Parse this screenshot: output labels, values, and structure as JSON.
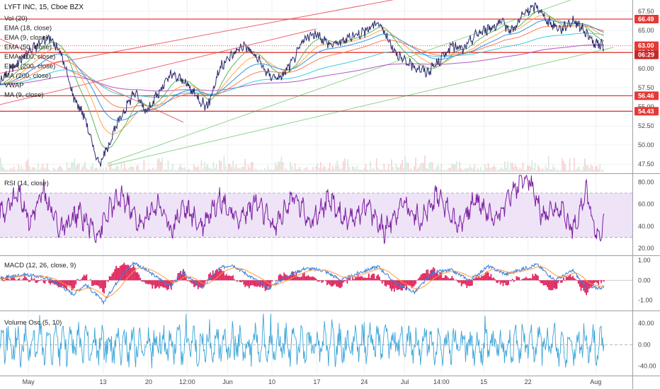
{
  "chart_data": {
    "type": "line",
    "title": "LYFT INC, 15, Cboe BZX",
    "price_pane": {
      "indicator_labels": [
        "Vol (20)",
        "EMA (18, close)",
        "EMA (9, close)",
        "EMA (50, close)",
        "EMA (100, close)",
        "EMA (200, close)",
        "MA (200, close)",
        "VWAP",
        "MA (9, close)"
      ],
      "y_ticks": [
        47.5,
        50.0,
        52.5,
        55.0,
        57.5,
        60.0,
        62.5,
        65.0,
        67.5
      ],
      "ylim": [
        46.5,
        68.8
      ],
      "horizontal_levels": [
        {
          "value": 66.49,
          "label": "66.49",
          "color": "#e53935"
        },
        {
          "value": 62.12,
          "label": "62.12",
          "color": "#e53935"
        },
        {
          "value": 56.46,
          "label": "56.46",
          "color": "#e53935"
        },
        {
          "value": 54.43,
          "label": "54.43",
          "color": "#e53935"
        }
      ],
      "last_price": {
        "value": 63.0,
        "label": "63.00",
        "countdown": "06:29"
      },
      "trendlines": [
        {
          "name": "upper-channel",
          "color": "#f06272",
          "from": [
            0.0,
            59.4
          ],
          "to": [
            0.75,
            71.0
          ]
        },
        {
          "name": "lower-channel",
          "color": "#f06272",
          "from": [
            0.0,
            55.3
          ],
          "to": [
            0.5,
            65.2
          ]
        },
        {
          "name": "descending",
          "color": "#f06272",
          "from": [
            0.0,
            63.9
          ],
          "to": [
            0.29,
            53.0
          ]
        },
        {
          "name": "green-upper",
          "color": "#8bd58b",
          "from": [
            0.17,
            47.6
          ],
          "to": [
            0.92,
            69.5
          ]
        },
        {
          "name": "green-lower",
          "color": "#8bd58b",
          "from": [
            0.17,
            47.3
          ],
          "to": [
            0.97,
            62.8
          ]
        }
      ],
      "price_anchors": [
        [
          0.0,
          58.2
        ],
        [
          0.02,
          60.2
        ],
        [
          0.05,
          62.4
        ],
        [
          0.08,
          64.2
        ],
        [
          0.1,
          62.0
        ],
        [
          0.12,
          56.5
        ],
        [
          0.14,
          53.5
        ],
        [
          0.155,
          49.0
        ],
        [
          0.165,
          47.6
        ],
        [
          0.18,
          50.5
        ],
        [
          0.2,
          54.0
        ],
        [
          0.22,
          57.0
        ],
        [
          0.24,
          54.5
        ],
        [
          0.26,
          56.8
        ],
        [
          0.28,
          59.2
        ],
        [
          0.3,
          58.5
        ],
        [
          0.32,
          56.6
        ],
        [
          0.34,
          55.0
        ],
        [
          0.36,
          60.0
        ],
        [
          0.38,
          61.8
        ],
        [
          0.4,
          63.2
        ],
        [
          0.42,
          61.5
        ],
        [
          0.44,
          59.2
        ],
        [
          0.46,
          58.8
        ],
        [
          0.48,
          61.0
        ],
        [
          0.5,
          64.0
        ],
        [
          0.52,
          64.5
        ],
        [
          0.54,
          63.2
        ],
        [
          0.56,
          63.5
        ],
        [
          0.58,
          64.4
        ],
        [
          0.6,
          65.0
        ],
        [
          0.62,
          66.2
        ],
        [
          0.64,
          63.3
        ],
        [
          0.66,
          61.0
        ],
        [
          0.68,
          60.3
        ],
        [
          0.7,
          59.5
        ],
        [
          0.72,
          61.0
        ],
        [
          0.74,
          63.0
        ],
        [
          0.76,
          62.5
        ],
        [
          0.78,
          64.5
        ],
        [
          0.8,
          65.2
        ],
        [
          0.82,
          66.0
        ],
        [
          0.84,
          65.0
        ],
        [
          0.86,
          67.3
        ],
        [
          0.88,
          68.2
        ],
        [
          0.9,
          66.0
        ],
        [
          0.92,
          65.2
        ],
        [
          0.94,
          66.4
        ],
        [
          0.96,
          64.8
        ],
        [
          0.975,
          63.2
        ],
        [
          0.99,
          63.0
        ]
      ]
    },
    "rsi_pane": {
      "label": "RSI (14, close)",
      "y_ticks": [
        20.0,
        40.0,
        60.0,
        80.0
      ],
      "ylim": [
        15,
        86
      ],
      "band": [
        30,
        70
      ],
      "anchors": [
        [
          0.0,
          50
        ],
        [
          0.03,
          70
        ],
        [
          0.05,
          45
        ],
        [
          0.07,
          72
        ],
        [
          0.1,
          35
        ],
        [
          0.13,
          52
        ],
        [
          0.16,
          32
        ],
        [
          0.18,
          55
        ],
        [
          0.2,
          68
        ],
        [
          0.23,
          40
        ],
        [
          0.26,
          62
        ],
        [
          0.28,
          36
        ],
        [
          0.3,
          58
        ],
        [
          0.33,
          40
        ],
        [
          0.36,
          66
        ],
        [
          0.39,
          45
        ],
        [
          0.42,
          62
        ],
        [
          0.45,
          38
        ],
        [
          0.48,
          68
        ],
        [
          0.51,
          44
        ],
        [
          0.54,
          64
        ],
        [
          0.57,
          42
        ],
        [
          0.6,
          60
        ],
        [
          0.63,
          35
        ],
        [
          0.66,
          62
        ],
        [
          0.69,
          45
        ],
        [
          0.72,
          70
        ],
        [
          0.75,
          40
        ],
        [
          0.78,
          64
        ],
        [
          0.81,
          46
        ],
        [
          0.84,
          72
        ],
        [
          0.865,
          86
        ],
        [
          0.89,
          48
        ],
        [
          0.92,
          54
        ],
        [
          0.94,
          36
        ],
        [
          0.96,
          72
        ],
        [
          0.98,
          28
        ],
        [
          0.99,
          43
        ]
      ]
    },
    "macd_pane": {
      "label": "MACD (12, 26, close, 9)",
      "y_ticks": [
        -1.0,
        0.0,
        1.0
      ],
      "ylim": [
        -1.45,
        1.15
      ],
      "anchors": [
        [
          0.0,
          0.1
        ],
        [
          0.04,
          0.3
        ],
        [
          0.08,
          0.1
        ],
        [
          0.12,
          -0.7
        ],
        [
          0.14,
          -0.2
        ],
        [
          0.17,
          -1.1
        ],
        [
          0.2,
          0.3
        ],
        [
          0.22,
          0.9
        ],
        [
          0.25,
          0.3
        ],
        [
          0.28,
          -0.3
        ],
        [
          0.3,
          0.4
        ],
        [
          0.33,
          -0.4
        ],
        [
          0.36,
          0.6
        ],
        [
          0.38,
          0.8
        ],
        [
          0.41,
          0.2
        ],
        [
          0.44,
          -0.4
        ],
        [
          0.47,
          0.2
        ],
        [
          0.5,
          0.6
        ],
        [
          0.53,
          0.5
        ],
        [
          0.56,
          0.0
        ],
        [
          0.59,
          0.4
        ],
        [
          0.62,
          0.7
        ],
        [
          0.65,
          -0.2
        ],
        [
          0.68,
          -0.6
        ],
        [
          0.71,
          0.4
        ],
        [
          0.74,
          0.5
        ],
        [
          0.77,
          0.0
        ],
        [
          0.8,
          0.7
        ],
        [
          0.83,
          0.3
        ],
        [
          0.86,
          0.6
        ],
        [
          0.88,
          0.8
        ],
        [
          0.91,
          0.0
        ],
        [
          0.94,
          0.5
        ],
        [
          0.96,
          -0.4
        ],
        [
          0.99,
          -0.35
        ]
      ],
      "macd_color": "#3d7bd4",
      "signal_color": "#ff9a3a",
      "hist_color": "#e0245e"
    },
    "vol_osc_pane": {
      "label": "Volume Osc (5, 10)",
      "y_ticks": [
        -40.0,
        0.0,
        40.0
      ],
      "ylim": [
        -55,
        60
      ],
      "color": "#3aa5d8"
    },
    "x_ticks": [
      {
        "label": "May",
        "pos": 0.045
      },
      {
        "label": "13",
        "pos": 0.163
      },
      {
        "label": "20",
        "pos": 0.235
      },
      {
        "label": "12:00",
        "pos": 0.296
      },
      {
        "label": "Jun",
        "pos": 0.36
      },
      {
        "label": "10",
        "pos": 0.43
      },
      {
        "label": "17",
        "pos": 0.501
      },
      {
        "label": "24",
        "pos": 0.576
      },
      {
        "label": "Jul",
        "pos": 0.64
      },
      {
        "label": "14:00",
        "pos": 0.698
      },
      {
        "label": "15",
        "pos": 0.765
      },
      {
        "label": "22",
        "pos": 0.835
      },
      {
        "label": "Aug",
        "pos": 0.942
      }
    ],
    "colors": {
      "price": "#2c2c6c",
      "ema18": "#ff9e3d",
      "ema9": "#4caf50",
      "ema50": "#ff6f3d",
      "ema100": "#26c6da",
      "ema200": "#ab47bc",
      "ma9": "#1e88e5",
      "rsi": "#7b1fa2",
      "rsi_band": "#efe3f7",
      "volume": "#cfd6dd"
    }
  }
}
